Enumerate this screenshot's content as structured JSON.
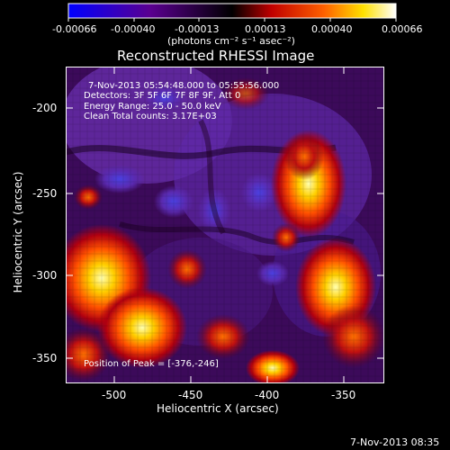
{
  "colorbar": {
    "tick_labels": [
      "-0.00066",
      "-0.00040",
      "-0.00013",
      "0.00013",
      "0.00040",
      "0.00066"
    ],
    "unit_label": "(photons cm⁻² s⁻¹ asec⁻²)",
    "colors": [
      "#0000ff",
      "#5a0090",
      "#000000",
      "#c00000",
      "#ff6000",
      "#ffe000",
      "#ffffff"
    ]
  },
  "plot": {
    "title": "Reconstructed RHESSI Image",
    "x_axis_label": "Heliocentric X (arcsec)",
    "y_axis_label": "Heliocentric Y (arcsec)",
    "x_tick_labels": [
      "-500",
      "-450",
      "-400",
      "-350"
    ],
    "y_tick_labels": [
      "-200",
      "-250",
      "-300",
      "-350"
    ],
    "info_lines": [
      "7-Nov-2013 05:54:48.000 to 05:55:56.000",
      "Detectors: 3F 5F 6F 7F 8F 9F, Att 0",
      "Energy Range: 25.0 - 50.0 keV",
      "Clean    Total counts: 3.17E+03"
    ],
    "peak_text": "Position of Peak = [-376,-246]"
  },
  "footer": {
    "timestamp": "7-Nov-2013 08:35"
  }
}
